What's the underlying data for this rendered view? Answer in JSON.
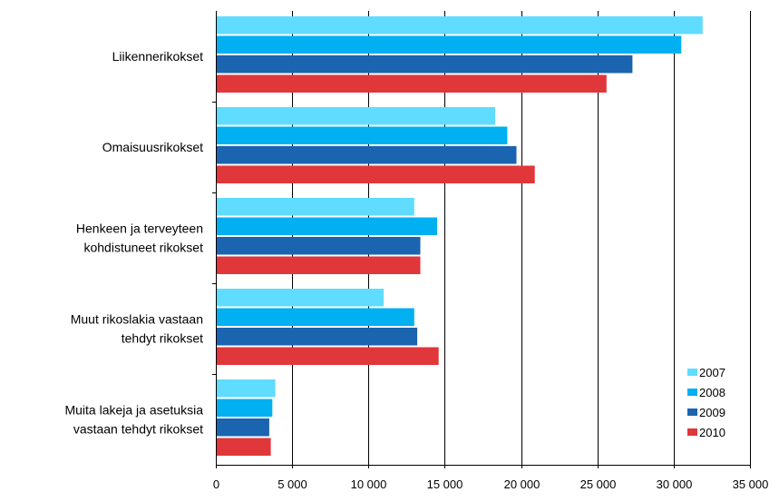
{
  "chart_data": {
    "type": "bar",
    "orientation": "horizontal",
    "title": "",
    "xlabel": "",
    "ylabel": "",
    "xlim": [
      0,
      35000
    ],
    "x_ticks": [
      0,
      5000,
      10000,
      15000,
      20000,
      25000,
      30000,
      35000
    ],
    "x_tick_labels": [
      "0",
      "5 000",
      "10 000",
      "15 000",
      "20 000",
      "25 000",
      "30 000",
      "35 000"
    ],
    "grid": "vertical",
    "legend_position": "bottom-right",
    "categories": [
      [
        "Liikennerikokset"
      ],
      [
        "Omaisuusrikokset"
      ],
      [
        "Henkeen ja terveyteen",
        "kohdistuneet rikokset"
      ],
      [
        "Muut rikoslakia vastaan",
        "tehdyt rikokset"
      ],
      [
        "Muita lakeja ja asetuksia",
        "vastaan tehdyt rikokset"
      ]
    ],
    "series": [
      {
        "name": "2007",
        "color": "#5fdcff",
        "values": [
          31900,
          18300,
          13000,
          11000,
          3900
        ]
      },
      {
        "name": "2008",
        "color": "#00b0f0",
        "values": [
          30500,
          19100,
          14500,
          13000,
          3700
        ]
      },
      {
        "name": "2009",
        "color": "#1a64b0",
        "values": [
          27300,
          19700,
          13400,
          13200,
          3500
        ]
      },
      {
        "name": "2010",
        "color": "#e0373b",
        "values": [
          25600,
          20900,
          13400,
          14600,
          3600
        ]
      }
    ]
  }
}
